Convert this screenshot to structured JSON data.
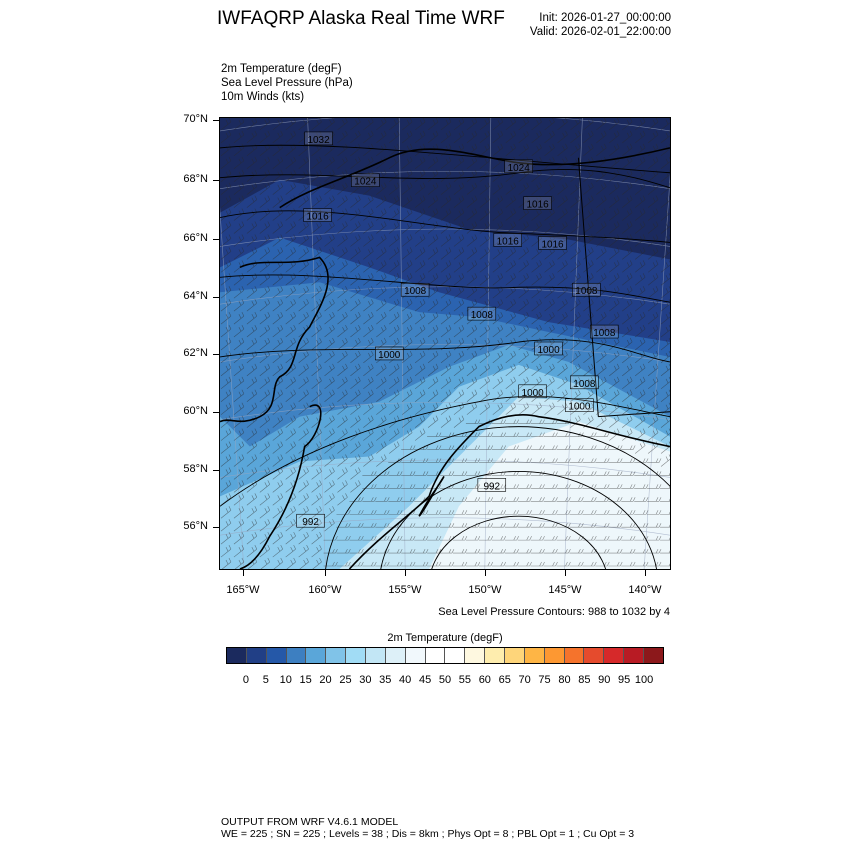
{
  "header": {
    "title": "IWFAQRP Alaska Real Time WRF",
    "init": "Init: 2026-01-27_00:00:00",
    "valid": "Valid: 2026-02-01_22:00:00"
  },
  "fields": [
    "2m Temperature   (degF)",
    "Sea Level Pressure   (hPa)",
    "10m Winds   (kts)"
  ],
  "map": {
    "lat_labels": [
      "70°N",
      "68°N",
      "66°N",
      "64°N",
      "62°N",
      "60°N",
      "58°N",
      "56°N"
    ],
    "lon_labels": [
      "165°W",
      "160°W",
      "155°W",
      "150°W",
      "145°W",
      "140°W"
    ],
    "pressure_labels": [
      "1032",
      "1024",
      "1016",
      "1024",
      "1016",
      "1016",
      "1016",
      "1008",
      "1008",
      "1008",
      "1008",
      "1000",
      "1000",
      "1000",
      "1008",
      "1000",
      "992",
      "992"
    ],
    "slp_note": "Sea Level Pressure Contours: 988 to 1032 by 4"
  },
  "colorbar": {
    "title": "2m Temperature  (degF)",
    "labels": [
      "0",
      "5",
      "10",
      "15",
      "20",
      "25",
      "30",
      "35",
      "40",
      "45",
      "50",
      "55",
      "60",
      "65",
      "70",
      "75",
      "80",
      "85",
      "90",
      "95",
      "100"
    ],
    "colors": [
      "#1b2a5e",
      "#213f86",
      "#2558a8",
      "#3d7fc1",
      "#5aa6d9",
      "#80c3e8",
      "#a1dcf5",
      "#c2e6f5",
      "#ddf0f8",
      "#f1f8fc",
      "#ffffff",
      "#ffffff",
      "#fef8e0",
      "#feedae",
      "#fed57a",
      "#feb545",
      "#fd9832",
      "#f5732c",
      "#e54b2d",
      "#d6292a",
      "#b81b24",
      "#8c181b"
    ]
  },
  "footer": {
    "line1": "OUTPUT FROM WRF V4.6.1 MODEL",
    "line2": "WE = 225 ; SN = 225 ; Levels = 38 ; Dis = 8km ; Phys Opt = 8 ; PBL Opt = 1 ; Cu Opt = 3"
  }
}
